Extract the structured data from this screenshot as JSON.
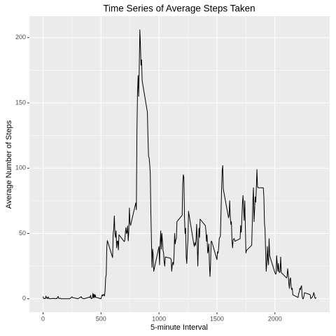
{
  "chart_data": {
    "type": "line",
    "title": "Time Series of Average Steps Taken",
    "x_label": "5-minute Interval",
    "y_label": "Average Number of Steps",
    "color": "#000000",
    "grid": true,
    "xlim": [
      -117.75,
      2472.75
    ],
    "xticks": [
      0,
      500,
      1000,
      1500,
      2000
    ],
    "ylim": [
      -10.31,
      216.48
    ],
    "yticks": [
      0,
      50,
      100,
      150,
      200
    ],
    "x": [
      0,
      5,
      10,
      15,
      20,
      25,
      30,
      35,
      40,
      45,
      50,
      55,
      100,
      105,
      110,
      115,
      120,
      125,
      130,
      135,
      140,
      145,
      150,
      155,
      200,
      230,
      250,
      255,
      300,
      330,
      335,
      340,
      345,
      350,
      355,
      400,
      405,
      410,
      415,
      420,
      425,
      430,
      435,
      440,
      445,
      450,
      455,
      500,
      505,
      510,
      515,
      520,
      525,
      530,
      535,
      540,
      545,
      550,
      555,
      600,
      605,
      610,
      615,
      620,
      625,
      630,
      635,
      640,
      645,
      650,
      655,
      700,
      705,
      710,
      715,
      720,
      725,
      730,
      735,
      740,
      745,
      750,
      755,
      800,
      805,
      810,
      815,
      820,
      825,
      830,
      835,
      840,
      845,
      850,
      855,
      900,
      905,
      910,
      915,
      920,
      925,
      930,
      935,
      940,
      945,
      950,
      955,
      1000,
      1005,
      1010,
      1015,
      1020,
      1025,
      1030,
      1035,
      1040,
      1045,
      1050,
      1055,
      1100,
      1105,
      1110,
      1115,
      1120,
      1125,
      1130,
      1135,
      1140,
      1145,
      1150,
      1155,
      1200,
      1205,
      1210,
      1215,
      1220,
      1225,
      1230,
      1235,
      1240,
      1245,
      1250,
      1255,
      1300,
      1305,
      1310,
      1315,
      1320,
      1325,
      1330,
      1335,
      1340,
      1345,
      1350,
      1355,
      1400,
      1405,
      1410,
      1415,
      1420,
      1425,
      1430,
      1435,
      1440,
      1445,
      1450,
      1455,
      1500,
      1505,
      1510,
      1515,
      1520,
      1525,
      1530,
      1535,
      1540,
      1545,
      1550,
      1555,
      1600,
      1605,
      1610,
      1615,
      1620,
      1625,
      1630,
      1635,
      1640,
      1645,
      1650,
      1655,
      1700,
      1705,
      1710,
      1715,
      1720,
      1725,
      1730,
      1735,
      1740,
      1745,
      1750,
      1755,
      1800,
      1805,
      1810,
      1815,
      1820,
      1825,
      1830,
      1835,
      1840,
      1845,
      1850,
      1855,
      1900,
      1905,
      1910,
      1915,
      1920,
      1925,
      1930,
      1935,
      1940,
      1945,
      1950,
      1955,
      2000,
      2005,
      2010,
      2015,
      2020,
      2025,
      2030,
      2035,
      2040,
      2045,
      2050,
      2055,
      2100,
      2105,
      2110,
      2115,
      2120,
      2125,
      2130,
      2135,
      2140,
      2145,
      2150,
      2155,
      2200,
      2205,
      2210,
      2215,
      2220,
      2225,
      2230,
      2235,
      2240,
      2245,
      2250,
      2255,
      2300,
      2305,
      2310,
      2315,
      2320,
      2325,
      2330,
      2335,
      2340,
      2345,
      2350,
      2355
    ],
    "y": [
      1.7,
      0.3,
      0.1,
      0.2,
      0.1,
      2.1,
      0.5,
      0.9,
      0,
      1.5,
      0.2,
      0,
      0.3,
      0,
      0.1,
      0.3,
      0,
      1.1,
      1.8,
      0.2,
      0.2,
      0.4,
      0.3,
      0,
      0,
      0,
      1.5,
      0.9,
      0,
      1.6,
      0.6,
      0.5,
      0.1,
      0,
      0,
      1.2,
      0.9,
      2.6,
      0,
      0.3,
      0.4,
      4.1,
      0.7,
      3.5,
      0.8,
      3.1,
      1.1,
      0,
      1.6,
      3,
      2.2,
      3.3,
      3,
      2.1,
      6,
      16,
      18.3,
      39.5,
      44.5,
      31.5,
      49.3,
      53.8,
      63.5,
      50,
      47,
      52,
      39,
      44,
      44.2,
      37.4,
      49,
      43.8,
      44.4,
      50.5,
      54.5,
      49.9,
      51,
      55.7,
      44.3,
      52.3,
      69.5,
      57.8,
      56.2,
      73.4,
      68.2,
      129,
      158,
      171,
      155,
      177,
      206,
      195,
      179,
      183,
      167,
      143,
      124,
      109,
      108,
      103,
      96,
      66,
      45,
      24,
      38,
      34,
      21,
      40,
      26,
      42,
      52,
      38,
      50,
      44,
      37,
      35,
      28,
      25,
      32,
      31,
      30,
      21,
      26,
      28,
      26,
      33,
      50,
      42,
      45,
      46,
      59,
      64,
      88,
      95,
      93,
      63,
      50,
      54,
      32,
      27,
      38,
      45,
      67,
      42,
      40,
      43,
      41,
      46,
      57,
      43,
      25,
      40,
      54,
      47,
      61,
      56,
      52,
      44,
      49,
      35,
      37,
      42,
      27,
      17,
      26,
      44,
      44,
      30,
      36,
      35,
      39,
      46,
      47,
      48,
      65,
      83,
      98,
      102,
      84,
      62,
      64,
      75,
      63,
      57,
      59,
      44,
      39,
      45,
      46,
      46,
      44,
      46,
      56,
      51,
      61,
      73,
      79,
      69,
      60,
      75,
      57,
      35,
      37,
      41,
      58,
      75,
      85,
      59,
      68,
      78,
      74,
      85,
      99,
      86,
      85,
      85,
      78,
      58,
      53,
      36,
      21,
      27,
      40,
      30,
      26,
      46,
      33,
      20,
      19,
      19,
      33,
      27,
      21,
      27,
      21,
      20,
      21,
      32,
      20,
      16,
      17,
      23,
      19,
      12,
      8,
      15,
      16,
      9,
      7,
      8,
      3,
      1,
      4,
      5,
      8,
      7,
      9,
      10,
      2,
      0,
      0,
      1.6,
      4.6,
      3.3,
      2.8,
      0,
      0.8,
      1,
      1.6,
      2.6,
      4.7,
      3.3,
      0.6,
      0.2,
      1.1
    ]
  }
}
